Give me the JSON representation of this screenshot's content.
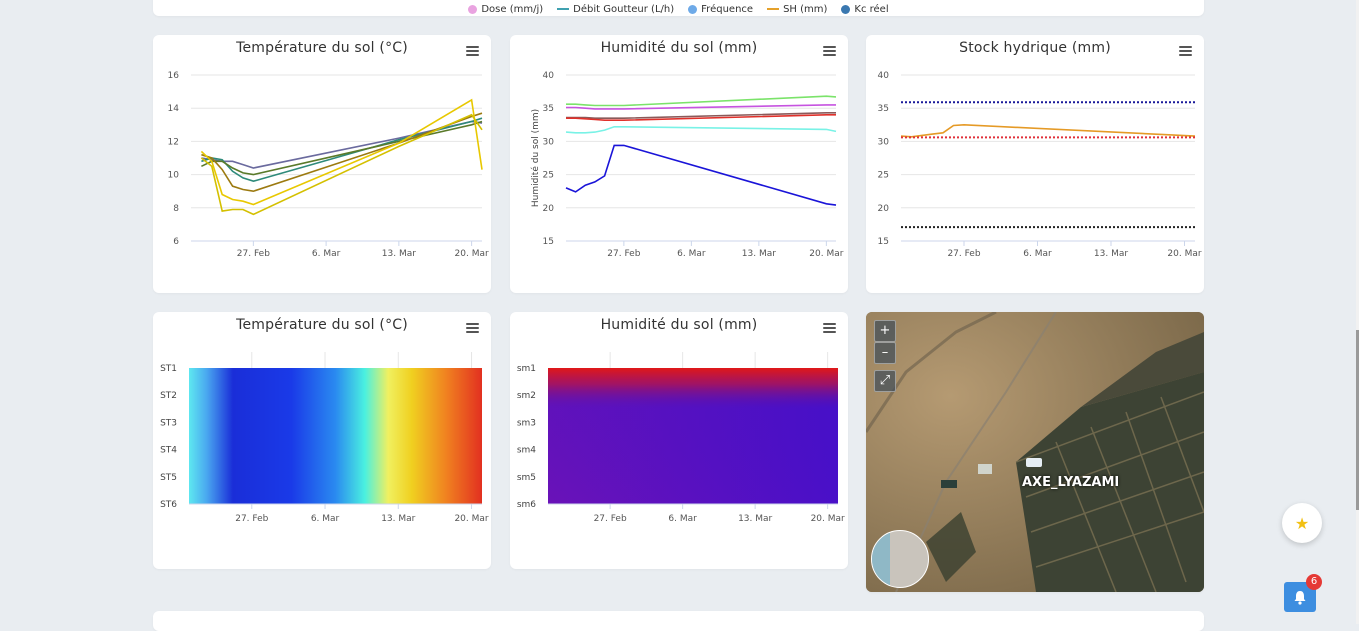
{
  "legend": [
    {
      "label": "Dose (mm/j)",
      "color": "#e9a3e0",
      "shape": "dot"
    },
    {
      "label": "Débit Goutteur (L/h)",
      "color": "#3fa1b0",
      "shape": "line"
    },
    {
      "label": "Fréquence",
      "color": "#6eaae8",
      "shape": "dot"
    },
    {
      "label": "SH (mm)",
      "color": "#e5a12b",
      "shape": "line"
    },
    {
      "label": "Kc réel",
      "color": "#3a78b0",
      "shape": "dot"
    }
  ],
  "x_ticks": [
    "27. Feb",
    "6. Mar",
    "13. Mar",
    "20. Mar"
  ],
  "chart_data": [
    {
      "type": "line",
      "title": "Température du sol (°C)",
      "ylim": [
        6,
        16
      ],
      "yticks": [
        6,
        8,
        10,
        12,
        14,
        16
      ],
      "ylabel": "",
      "x": [
        "Feb 22",
        "Feb 23",
        "Feb 24",
        "Feb 25",
        "Feb 26",
        "Feb 27",
        "Mar 13",
        "Mar 20",
        "Mar 21"
      ],
      "series": [
        {
          "color": "#6a6a9e",
          "values": [
            11.0,
            10.9,
            10.8,
            10.8,
            10.6,
            10.4,
            12.2,
            13.2,
            13.1
          ]
        },
        {
          "color": "#2e8a7a",
          "values": [
            10.8,
            11.0,
            10.9,
            10.2,
            9.8,
            9.6,
            12.1,
            13.2,
            13.4
          ]
        },
        {
          "color": "#5a7a2a",
          "values": [
            10.5,
            10.8,
            10.8,
            10.4,
            10.1,
            10.0,
            12.0,
            13.0,
            13.2
          ]
        },
        {
          "color": "#9c7a10",
          "values": [
            11.2,
            11.0,
            10.3,
            9.3,
            9.1,
            9.0,
            11.9,
            13.5,
            13.7
          ]
        },
        {
          "color": "#e8c800",
          "values": [
            11.4,
            10.8,
            8.8,
            8.5,
            8.4,
            8.2,
            11.9,
            14.5,
            10.3
          ]
        },
        {
          "color": "#d4c000",
          "values": [
            11.0,
            10.5,
            7.8,
            7.9,
            7.9,
            7.6,
            11.7,
            13.6,
            12.7
          ]
        }
      ]
    },
    {
      "type": "line",
      "title": "Humidité du sol (mm)",
      "ylim": [
        15,
        40
      ],
      "yticks": [
        15,
        20,
        25,
        30,
        35,
        40
      ],
      "ylabel": "Humidité du sol (mm)",
      "x": [
        "Feb 21",
        "Feb 22",
        "Feb 23",
        "Feb 24",
        "Feb 25",
        "Feb 26",
        "Feb 27",
        "Mar 20",
        "Mar 21"
      ],
      "series": [
        {
          "color": "#7be36a",
          "values": [
            35.6,
            35.6,
            35.5,
            35.4,
            35.4,
            35.4,
            35.4,
            36.8,
            36.7
          ]
        },
        {
          "color": "#c653e0",
          "values": [
            35.1,
            35.1,
            35.0,
            34.9,
            34.9,
            34.9,
            34.9,
            35.5,
            35.5
          ]
        },
        {
          "color": "#8a5a5a",
          "values": [
            33.6,
            33.6,
            33.6,
            33.5,
            33.5,
            33.5,
            33.5,
            34.3,
            34.3
          ]
        },
        {
          "color": "#e0302a",
          "values": [
            33.5,
            33.5,
            33.4,
            33.3,
            33.2,
            33.2,
            33.2,
            34.0,
            34.0
          ]
        },
        {
          "color": "#79f2e6",
          "values": [
            31.4,
            31.3,
            31.3,
            31.4,
            31.7,
            32.2,
            32.2,
            31.8,
            31.5
          ]
        },
        {
          "color": "#1a14d8",
          "values": [
            23.0,
            22.4,
            23.4,
            23.9,
            24.8,
            29.4,
            29.4,
            20.6,
            20.4
          ]
        }
      ]
    },
    {
      "type": "line",
      "title": "Stock hydrique (mm)",
      "ylim": [
        15,
        40
      ],
      "yticks": [
        15,
        20,
        25,
        30,
        35,
        40
      ],
      "ylabel": "",
      "x": [
        "Feb 21",
        "Feb 22",
        "Feb 23",
        "Feb 24",
        "Feb 25",
        "Feb 26",
        "Feb 27",
        "Mar 21"
      ],
      "series": [
        {
          "color": "#e59a26",
          "values": [
            30.8,
            30.7,
            30.9,
            31.1,
            31.3,
            32.4,
            32.5,
            30.8
          ]
        },
        {
          "color": "#1a1a9a",
          "values": [
            35.9,
            35.9,
            35.9,
            35.9,
            35.9,
            35.9,
            35.9,
            35.9
          ],
          "dash": true
        },
        {
          "color": "#e0303a",
          "values": [
            30.6,
            30.6,
            30.6,
            30.6,
            30.6,
            30.6,
            30.6,
            30.6
          ],
          "dash": true
        },
        {
          "color": "#222222",
          "values": [
            17.1,
            17.1,
            17.1,
            17.1,
            17.1,
            17.1,
            17.1,
            17.1
          ],
          "dash": true
        }
      ]
    },
    {
      "type": "heatmap",
      "title": "Température du sol (°C)",
      "rows": [
        "ST1",
        "ST2",
        "ST3",
        "ST4",
        "ST5",
        "ST6"
      ]
    },
    {
      "type": "heatmap",
      "title": "Humidité du sol (mm)",
      "rows": [
        "sm1",
        "sm2",
        "sm3",
        "sm4",
        "sm5",
        "sm6"
      ]
    }
  ],
  "map": {
    "label": "AXE_LYAZAMI",
    "zoom_in": "+",
    "zoom_out": "–",
    "fullscreen": "⤢"
  },
  "notifications": {
    "count": "6"
  }
}
